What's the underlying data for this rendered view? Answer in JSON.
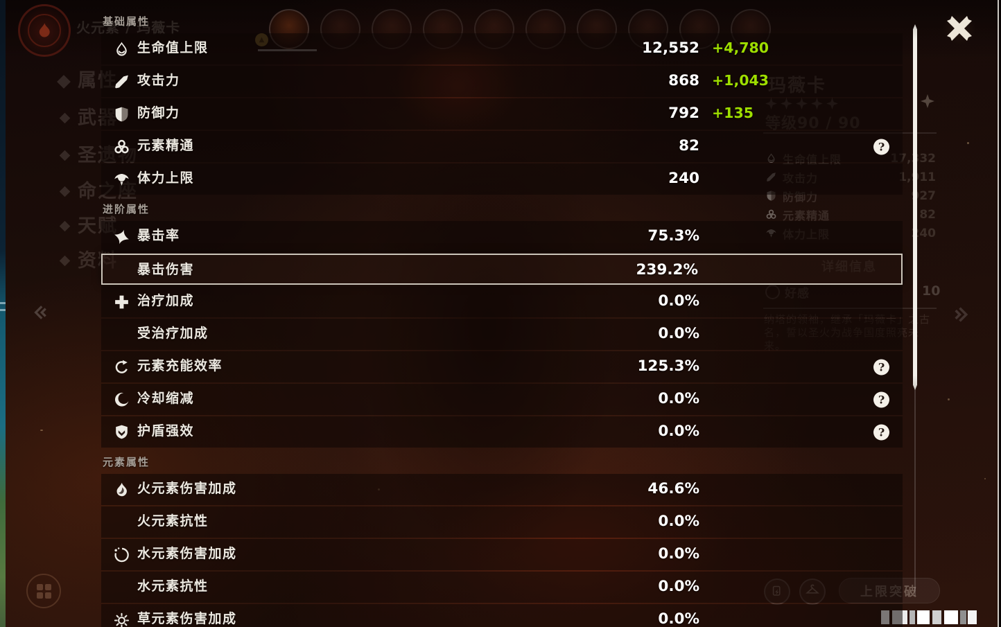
{
  "overlay": {
    "help_glyph": "?",
    "sections": [
      {
        "title": "基础属性",
        "rows": [
          {
            "icon": "hp-icon",
            "label": "生命值上限",
            "value": "12,552",
            "bonus": "+4,780"
          },
          {
            "icon": "atk-icon",
            "label": "攻击力",
            "value": "868",
            "bonus": "+1,043"
          },
          {
            "icon": "def-icon",
            "label": "防御力",
            "value": "792",
            "bonus": "+135"
          },
          {
            "icon": "em-icon",
            "label": "元素精通",
            "value": "82",
            "help": true
          },
          {
            "icon": "stamina-icon",
            "label": "体力上限",
            "value": "240"
          }
        ]
      },
      {
        "title": "进阶属性",
        "rows": [
          {
            "icon": "crit-rate-icon",
            "label": "暴击率",
            "value": "75.3%"
          },
          {
            "icon": null,
            "label": "暴击伤害",
            "value": "239.2%",
            "selected": true
          },
          {
            "icon": "healing-icon",
            "label": "治疗加成",
            "value": "0.0%"
          },
          {
            "icon": null,
            "label": "受治疗加成",
            "value": "0.0%"
          },
          {
            "icon": "energy-icon",
            "label": "元素充能效率",
            "value": "125.3%",
            "help": true
          },
          {
            "icon": "cd-icon",
            "label": "冷却缩减",
            "value": "0.0%",
            "help": true
          },
          {
            "icon": "shield-icon",
            "label": "护盾强效",
            "value": "0.0%",
            "help": true
          }
        ]
      },
      {
        "title": "元素属性",
        "rows": [
          {
            "icon": "pyro-icon",
            "label": "火元素伤害加成",
            "value": "46.6%"
          },
          {
            "icon": null,
            "label": "火元素抗性",
            "value": "0.0%"
          },
          {
            "icon": "hydro-icon",
            "label": "水元素伤害加成",
            "value": "0.0%"
          },
          {
            "icon": null,
            "label": "水元素抗性",
            "value": "0.0%"
          },
          {
            "icon": "dendro-icon",
            "label": "草元素伤害加成",
            "value": "0.0%"
          }
        ]
      }
    ]
  },
  "background": {
    "page_header": "火元素 / 玛薇卡",
    "menu": [
      "属性",
      "武器",
      "圣遗物",
      "命之座",
      "天赋",
      "资料"
    ],
    "top_avatar_count": 10,
    "character": {
      "name": "玛薇卡",
      "rarity_stars": 5,
      "level_label": "等级90 / 90",
      "stats": [
        {
          "icon": "hp-icon",
          "label": "生命值上限",
          "value": "17,332"
        },
        {
          "icon": "atk-icon",
          "label": "攻击力",
          "value": "1,911"
        },
        {
          "icon": "def-icon",
          "label": "防御力",
          "value": "927"
        },
        {
          "icon": "em-icon",
          "label": "元素精通",
          "value": "82"
        },
        {
          "icon": "stamina-icon",
          "label": "体力上限",
          "value": "240"
        }
      ],
      "details_button_label": "详细信息",
      "friendship_label": "好感",
      "friendship_value": "10",
      "description": "纳塔的领袖，继承「玛薇卡」之古名，誓以圣火为战争国度照亮未来。"
    },
    "ascend_button_label": "上限突破",
    "avatar_badge_glyph": "▲"
  },
  "colors": {
    "bonus_green": "#9ede00",
    "selected_border": "#ccc5ba",
    "panel_row_bg": "rgba(13,6,4,0.55)"
  }
}
